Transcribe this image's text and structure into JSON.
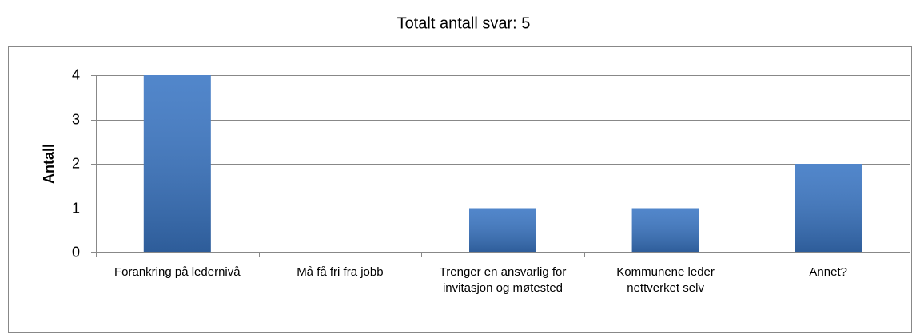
{
  "chart_data": {
    "type": "bar",
    "title": "Totalt antall svar: 5",
    "y_label": "Antall",
    "categories": [
      "Forankring på ledernivå",
      "Må få fri fra jobb",
      "Trenger en ansvarlig for invitasjon og møtested",
      "Kommunene leder nettverket selv",
      "Annet?"
    ],
    "values": [
      4,
      0,
      1,
      1,
      2
    ],
    "color": "#3a76c4",
    "ylim": [
      0,
      4
    ],
    "yticks": [
      0,
      1,
      2,
      3,
      4
    ],
    "grid": true
  }
}
